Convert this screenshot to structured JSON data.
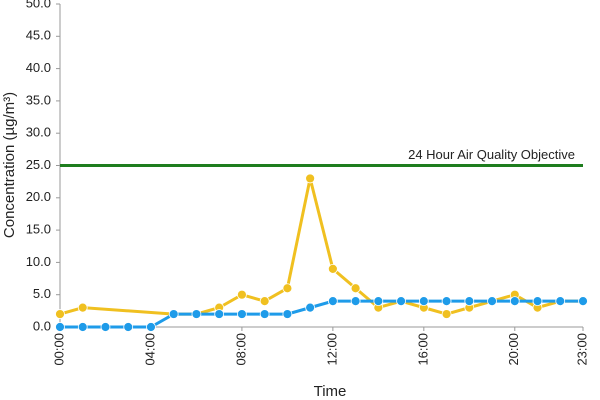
{
  "chart_data": {
    "type": "line",
    "x_label": "Time",
    "y_label": "Concentration (µg/m³)",
    "xlim": [
      0,
      23
    ],
    "xticks": [
      {
        "value": 0,
        "label": "00:00"
      },
      {
        "value": 4,
        "label": "04:00"
      },
      {
        "value": 8,
        "label": "08:00"
      },
      {
        "value": 12,
        "label": "12:00"
      },
      {
        "value": 16,
        "label": "16:00"
      },
      {
        "value": 20,
        "label": "20:00"
      },
      {
        "value": 23,
        "label": "23:00"
      }
    ],
    "ylim": [
      0,
      50
    ],
    "yticks": [
      {
        "value": 0,
        "label": "0.0"
      },
      {
        "value": 5,
        "label": "5.0"
      },
      {
        "value": 10,
        "label": "10.0"
      },
      {
        "value": 15,
        "label": "15.0"
      },
      {
        "value": 20,
        "label": "20.0"
      },
      {
        "value": 25,
        "label": "25.0"
      },
      {
        "value": 30,
        "label": "30.0"
      },
      {
        "value": 35,
        "label": "35.0"
      },
      {
        "value": 40,
        "label": "40.0"
      },
      {
        "value": 45,
        "label": "45.0"
      },
      {
        "value": 50,
        "label": "50.0"
      }
    ],
    "reference_line": {
      "label": "24 Hour Air Quality Objective",
      "value": 25,
      "color": "#1e7d1e"
    },
    "series": [
      {
        "color": "#f0c020",
        "x": [
          0,
          1,
          5,
          6,
          7,
          8,
          9,
          10,
          11,
          12,
          13,
          14,
          15,
          16,
          17,
          18,
          19,
          20,
          21,
          22,
          23
        ],
        "values": [
          2,
          3,
          2,
          2,
          3,
          5,
          4,
          6,
          23,
          9,
          6,
          3,
          4,
          3,
          2,
          3,
          4,
          5,
          3,
          4,
          4
        ]
      },
      {
        "color": "#1e9be9",
        "x": [
          0,
          1,
          2,
          3,
          4,
          5,
          6,
          7,
          8,
          9,
          10,
          11,
          12,
          13,
          14,
          15,
          16,
          17,
          18,
          19,
          20,
          21,
          22,
          23
        ],
        "values": [
          0,
          0,
          0,
          0,
          0,
          2,
          2,
          2,
          2,
          2,
          2,
          3,
          4,
          4,
          4,
          4,
          4,
          4,
          4,
          4,
          4,
          4,
          4,
          4
        ]
      }
    ]
  }
}
